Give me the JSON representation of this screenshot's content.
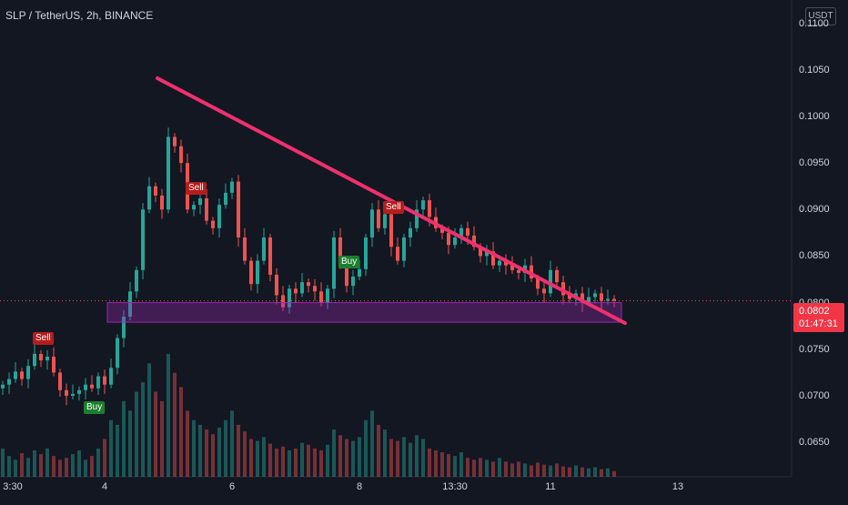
{
  "header": {
    "title": "SLP / TetherUS, 2h, BINANCE",
    "currency_label": "USDT"
  },
  "price_tag": {
    "price": "0.0802",
    "countdown": "01:47:31"
  },
  "chart_data": {
    "type": "candlestick",
    "symbol": "SLP / TetherUS",
    "interval": "2h",
    "exchange": "BINANCE",
    "y_ticks": [
      "0.1100",
      "0.1050",
      "0.1000",
      "0.0950",
      "0.0900",
      "0.0850",
      "0.0800",
      "0.0750",
      "0.0700",
      "0.0650"
    ],
    "y_tick_values": [
      0.11,
      0.105,
      0.1,
      0.095,
      0.09,
      0.085,
      0.08,
      0.075,
      0.07,
      0.065
    ],
    "x_ticks": [
      "3:30",
      "4",
      "6",
      "8",
      "13:30",
      "11",
      "13"
    ],
    "x_tick_index": [
      0,
      16,
      36,
      56,
      71,
      86,
      106
    ],
    "ylim": [
      0.0613,
      0.1125
    ],
    "last_price": 0.0802,
    "closes": [
      0.0712,
      0.0718,
      0.0726,
      0.0718,
      0.0732,
      0.0745,
      0.0738,
      0.0742,
      0.0725,
      0.0706,
      0.07,
      0.0702,
      0.0706,
      0.0712,
      0.0708,
      0.0721,
      0.0712,
      0.073,
      0.0762,
      0.0785,
      0.0812,
      0.0835,
      0.09,
      0.0925,
      0.0915,
      0.09,
      0.0978,
      0.0968,
      0.095,
      0.09,
      0.0905,
      0.0912,
      0.0888,
      0.088,
      0.0905,
      0.0918,
      0.093,
      0.087,
      0.0845,
      0.082,
      0.0845,
      0.087,
      0.083,
      0.0808,
      0.0795,
      0.0815,
      0.081,
      0.0822,
      0.0818,
      0.0812,
      0.08,
      0.0815,
      0.087,
      0.084,
      0.0818,
      0.0828,
      0.0836,
      0.087,
      0.09,
      0.088,
      0.0895,
      0.086,
      0.0845,
      0.087,
      0.088,
      0.09,
      0.091,
      0.0892,
      0.088,
      0.0875,
      0.0862,
      0.087,
      0.088,
      0.0872,
      0.086,
      0.085,
      0.0855,
      0.084,
      0.0845,
      0.084,
      0.0835,
      0.0832,
      0.084,
      0.0826,
      0.0815,
      0.081,
      0.0835,
      0.0822,
      0.0808,
      0.0804,
      0.081,
      0.08,
      0.0806,
      0.081,
      0.0802,
      0.0804,
      0.0802
    ],
    "volumes": [
      30,
      22,
      18,
      25,
      20,
      28,
      24,
      30,
      22,
      18,
      20,
      24,
      28,
      18,
      22,
      30,
      40,
      60,
      55,
      80,
      70,
      90,
      100,
      120,
      90,
      80,
      130,
      110,
      95,
      70,
      60,
      55,
      50,
      45,
      52,
      60,
      70,
      55,
      48,
      40,
      38,
      42,
      35,
      30,
      32,
      28,
      30,
      36,
      34,
      30,
      28,
      34,
      50,
      44,
      40,
      38,
      42,
      60,
      70,
      55,
      50,
      40,
      38,
      42,
      36,
      44,
      40,
      30,
      28,
      26,
      24,
      22,
      26,
      20,
      18,
      20,
      18,
      16,
      20,
      16,
      14,
      16,
      14,
      12,
      15,
      13,
      12,
      14,
      11,
      10,
      12,
      10,
      9,
      10,
      8,
      9,
      6
    ],
    "trendline": {
      "from_price": 0.1041,
      "to_price": 0.0778,
      "label": ""
    },
    "support_zone": {
      "top": 0.08,
      "bottom": 0.0779,
      "color": "#9c27b0"
    },
    "signals": [
      {
        "label": "Sell",
        "type": "sell",
        "bar": 6,
        "price": 0.0762
      },
      {
        "label": "Buy",
        "type": "buy",
        "bar": 14,
        "price": 0.0687
      },
      {
        "label": "Sell",
        "type": "sell",
        "bar": 30,
        "price": 0.0923
      },
      {
        "label": "Buy",
        "type": "buy",
        "bar": 54,
        "price": 0.0844
      },
      {
        "label": "Sell",
        "type": "sell",
        "bar": 61,
        "price": 0.0902
      }
    ],
    "colors": {
      "up": "#26a69a",
      "down": "#ef5350",
      "trendline": "#f0306e",
      "background": "#131722"
    }
  }
}
